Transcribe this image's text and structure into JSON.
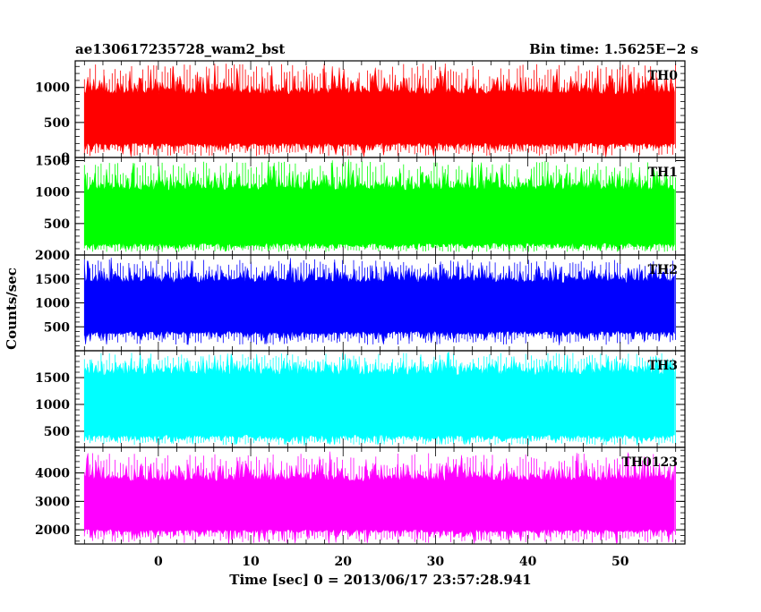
{
  "header": {
    "left_title": "ae130617235728_wam2_bst",
    "right_title": "Bin time: 1.5625E−2 s"
  },
  "chart_data": {
    "type": "line",
    "title": "ae130617235728_wam2_bst",
    "subtitle": "Bin time: 1.5625E−2 s",
    "xlabel": "Time [sec] 0 = 2013/06/17 23:57:28.941",
    "ylabel": "Counts/sec",
    "xlim": [
      -9,
      57
    ],
    "data_range": [
      -8,
      56
    ],
    "x_ticks": [
      0,
      10,
      20,
      30,
      40,
      50
    ],
    "grid": false,
    "panels": [
      {
        "name": "TH0",
        "color": "#ff0000",
        "ylim": [
          0,
          1380
        ],
        "y_ticks": [
          0,
          500,
          1000
        ],
        "upper_typical": 1000,
        "upper_spike": 1380,
        "lower_typical": 160,
        "lower_dip": 5
      },
      {
        "name": "TH1",
        "color": "#00ff00",
        "ylim": [
          0,
          1550
        ],
        "y_ticks": [
          500,
          1000,
          1500
        ],
        "upper_typical": 1150,
        "upper_spike": 1530,
        "lower_typical": 130,
        "lower_dip": 40
      },
      {
        "name": "TH2",
        "color": "#0000ff",
        "ylim": [
          0,
          2000
        ],
        "y_ticks": [
          500,
          1000,
          1500,
          2000
        ],
        "upper_typical": 1560,
        "upper_spike": 1950,
        "lower_typical": 340,
        "lower_dip": 100
      },
      {
        "name": "TH3",
        "color": "#00ffff",
        "ylim": [
          200,
          2000
        ],
        "y_ticks": [
          500,
          1000,
          1500
        ],
        "upper_typical": 1700,
        "upper_spike": 1990,
        "lower_typical": 360,
        "lower_dip": 230
      },
      {
        "name": "TH0123",
        "color": "#ff00ff",
        "ylim": [
          1500,
          4900
        ],
        "y_ticks": [
          2000,
          3000,
          4000
        ],
        "upper_typical": 3950,
        "upper_spike": 4780,
        "lower_typical": 1900,
        "lower_dip": 1500
      }
    ]
  }
}
